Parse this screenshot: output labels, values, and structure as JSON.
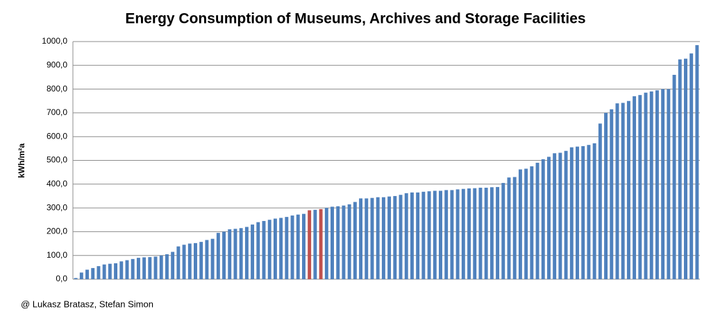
{
  "chart_data": {
    "type": "bar",
    "title": "Energy Consumption of Museums, Archives and Storage Facilities",
    "y_label": "kWh/m²a",
    "footer": "@ Lukasz Bratasz, Stefan Simon",
    "values": [
      5,
      28,
      40,
      47,
      55,
      62,
      65,
      67,
      75,
      80,
      85,
      90,
      92,
      93,
      95,
      100,
      105,
      115,
      138,
      145,
      150,
      152,
      157,
      165,
      170,
      195,
      200,
      210,
      212,
      215,
      220,
      230,
      240,
      245,
      250,
      255,
      258,
      262,
      268,
      272,
      275,
      290,
      292,
      295,
      300,
      305,
      307,
      310,
      315,
      325,
      340,
      340,
      342,
      345,
      345,
      348,
      350,
      355,
      362,
      365,
      365,
      368,
      370,
      372,
      372,
      375,
      375,
      378,
      380,
      382,
      383,
      385,
      385,
      387,
      388,
      405,
      428,
      430,
      462,
      465,
      475,
      490,
      505,
      515,
      530,
      532,
      540,
      555,
      558,
      560,
      565,
      572,
      655,
      700,
      715,
      740,
      742,
      750,
      770,
      775,
      785,
      790,
      795,
      800,
      800,
      860,
      925,
      928,
      950,
      985
    ],
    "color": "#4f81bd",
    "highlight": {
      "color": "#c0504d",
      "indices": [
        41,
        43
      ]
    },
    "ylim": [
      0,
      1000
    ],
    "yticks": [
      {
        "value": 0,
        "label": "0,0"
      },
      {
        "value": 100,
        "label": "100,0"
      },
      {
        "value": 200,
        "label": "200,0"
      },
      {
        "value": 300,
        "label": "300,0"
      },
      {
        "value": 400,
        "label": "400,0"
      },
      {
        "value": 500,
        "label": "500,0"
      },
      {
        "value": 600,
        "label": "600,0"
      },
      {
        "value": 700,
        "label": "700,0"
      },
      {
        "value": 800,
        "label": "800,0"
      },
      {
        "value": 900,
        "label": "900,0"
      },
      {
        "value": 1000,
        "label": "1000,0"
      }
    ],
    "grid": true
  }
}
